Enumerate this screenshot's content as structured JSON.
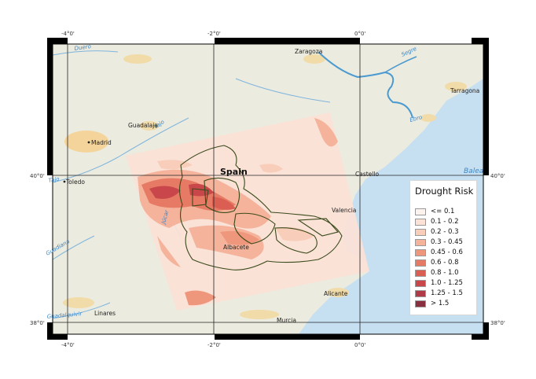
{
  "map": {
    "region_label": "Spain",
    "cities": [
      {
        "name": "Zaragoza"
      },
      {
        "name": "Tarragona"
      },
      {
        "name": "Guadalaja"
      },
      {
        "name": "Madrid"
      },
      {
        "name": "Toledo"
      },
      {
        "name": "Castello"
      },
      {
        "name": "Valencia"
      },
      {
        "name": "Albacete"
      },
      {
        "name": "Alicante"
      },
      {
        "name": "Linares"
      },
      {
        "name": "Murcia"
      }
    ],
    "rivers": [
      "Duero",
      "Segre",
      "Ebro",
      "Tajo",
      "Tajo",
      "Júcar",
      "Guadiana",
      "Guadalquivir"
    ],
    "sea_label": "Balea",
    "grid": {
      "top_ticks": [
        "-4°0'",
        "-2°0'",
        "0°0'"
      ],
      "bottom_ticks": [
        "-4°0'",
        "-2°0'",
        "0°0'"
      ],
      "left_ticks": [
        "40°0'",
        "38°0'"
      ],
      "right_ticks": [
        "40°0'",
        "38°0'"
      ]
    },
    "colors": {
      "land": "#ecebdf",
      "sea": "#c6e0f2",
      "river": "#4b9ad0",
      "urban": "#f4d49a",
      "boundary": "#3a4a1a"
    }
  },
  "legend": {
    "title": "Drought Risk",
    "classes": [
      {
        "label": "<= 0.1",
        "color": "#fdf3ee"
      },
      {
        "label": "0.1 - 0.2",
        "color": "#fbe1d6"
      },
      {
        "label": "0.2 - 0.3",
        "color": "#f8cdb9"
      },
      {
        "label": "0.3 - 0.45",
        "color": "#f4b39a"
      },
      {
        "label": "0.45 - 0.6",
        "color": "#ef977c"
      },
      {
        "label": "0.6 - 0.8",
        "color": "#e67a64"
      },
      {
        "label": "0.8 - 1.0",
        "color": "#da5e51"
      },
      {
        "label": "1.0 - 1.25",
        "color": "#c9474a"
      },
      {
        "label": "1.25 - 1.5",
        "color": "#b03a48"
      },
      {
        "label": "> 1.5",
        "color": "#8a2f40"
      }
    ]
  }
}
